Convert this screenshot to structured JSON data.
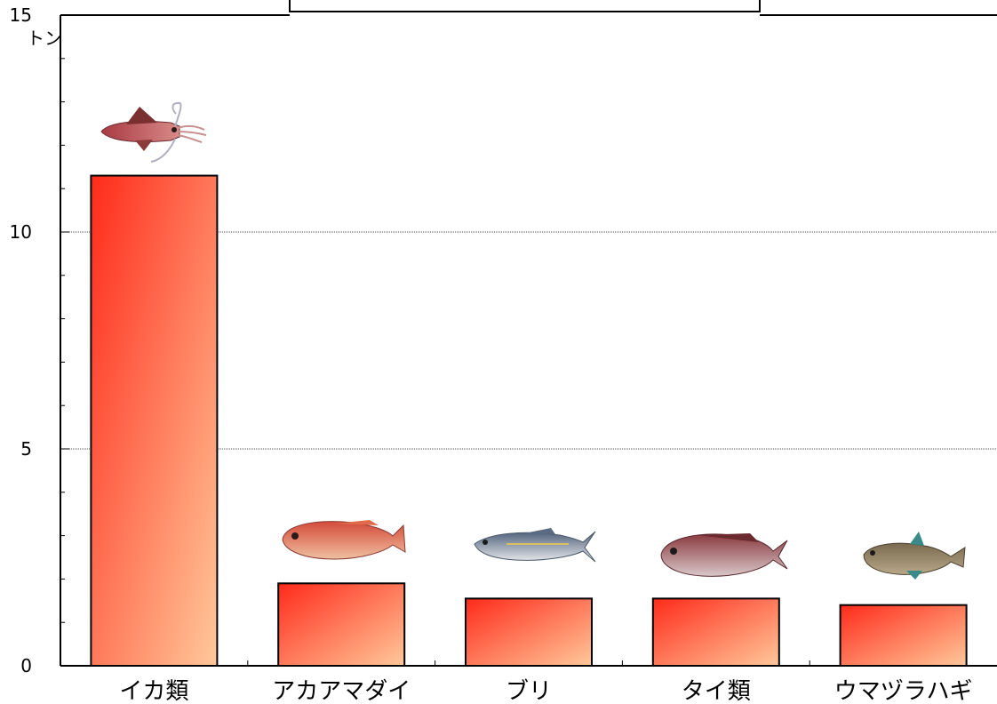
{
  "chart_data": {
    "type": "bar",
    "title": "",
    "xlabel": "",
    "ylabel": "",
    "y_unit": "トン",
    "ylim": [
      0,
      15
    ],
    "y_ticks": [
      "0",
      "5",
      "10",
      "15"
    ],
    "categories": [
      "イカ類",
      "アカアマダイ",
      "ブリ",
      "タイ類",
      "ウマヅラハギ"
    ],
    "values": [
      11.3,
      1.9,
      1.55,
      1.55,
      1.4
    ],
    "grid": "horizontal dotted at 5 and 10",
    "legend": "none",
    "bar_gradient": [
      "#ff2a1a",
      "#ffc89a"
    ],
    "category_icons": [
      "squid-icon",
      "red-tilefish-icon",
      "yellowtail-icon",
      "sea-bream-icon",
      "filefish-icon"
    ]
  }
}
